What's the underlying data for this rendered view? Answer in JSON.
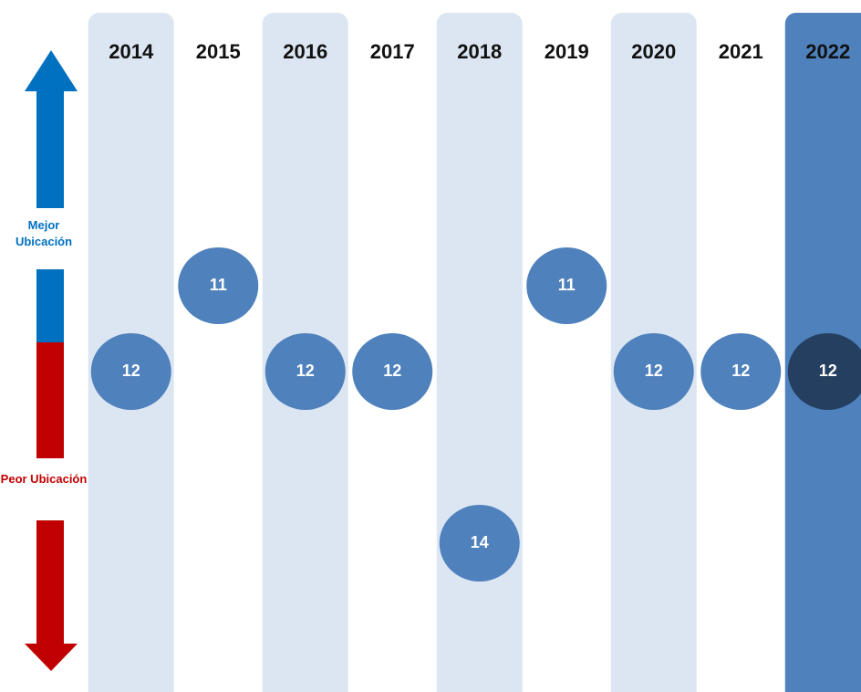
{
  "chart_data": {
    "type": "rank",
    "categories": [
      "2014",
      "2015",
      "2016",
      "2017",
      "2018",
      "2019",
      "2020",
      "2021",
      "2022"
    ],
    "values": [
      12,
      11,
      12,
      12,
      14,
      11,
      12,
      12,
      12
    ],
    "color": "#4f81bd",
    "band_color": "#dce6f2",
    "highlight": "2022",
    "highlight_band_color": "#4f81bd",
    "highlight_color": "#243f60",
    "better_label": "Mejor Ubicación",
    "worse_label": "Peor Ubicación",
    "better_color": "#0070c0",
    "worse_color": "#c00000",
    "inverted": true
  }
}
